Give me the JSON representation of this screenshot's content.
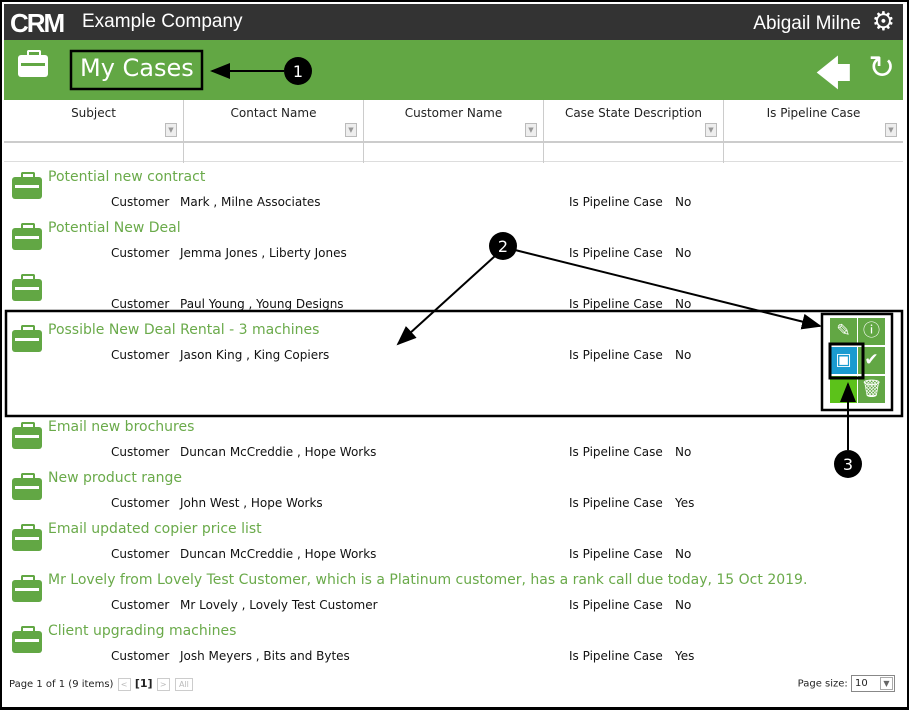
{
  "topbar": {
    "logo": "CRM",
    "company": "Example Company",
    "user": "Abigail Milne",
    "settings_icon": "gear-icon"
  },
  "header": {
    "title": "My Cases",
    "icon": "briefcase-icon",
    "back_icon": "arrow-left-icon",
    "refresh_icon": "refresh-icon"
  },
  "columns": [
    "Subject",
    "Contact Name",
    "Customer Name",
    "Case State Description",
    "Is Pipeline Case"
  ],
  "row_labels": {
    "customer": "Customer",
    "pipeline": "Is Pipeline Case"
  },
  "rows": [
    {
      "subject": "Potential new contract",
      "customer": "Mark , Milne Associates",
      "pipeline": "No"
    },
    {
      "subject": "Potential New Deal",
      "customer": "Jemma Jones , Liberty Jones",
      "pipeline": "No"
    },
    {
      "subject": "",
      "customer": "Paul Young , Young Designs",
      "pipeline": "No"
    },
    {
      "subject": "Possible New Deal Rental - 3 machines",
      "customer": "Jason King , King Copiers",
      "pipeline": "No",
      "selected": true
    },
    {
      "subject": "Email new brochures",
      "customer": "Duncan McCreddie , Hope Works",
      "pipeline": "No"
    },
    {
      "subject": "New product range",
      "customer": "John West , Hope Works",
      "pipeline": "Yes"
    },
    {
      "subject": "Email updated copier price list",
      "customer": "Duncan McCreddie , Hope Works",
      "pipeline": "No"
    },
    {
      "subject": "Mr Lovely from Lovely Test Customer, which is a Platinum customer, has a rank call due today, 15 Oct 2019.",
      "customer": "Mr Lovely , Lovely Test Customer",
      "pipeline": "No"
    },
    {
      "subject": "Client upgrading machines",
      "customer": "Josh Meyers , Bits and Bytes",
      "pipeline": "Yes"
    }
  ],
  "row_actions": [
    {
      "name": "edit",
      "icon": "pencil-icon",
      "color": "#62a744"
    },
    {
      "name": "info",
      "icon": "info-icon",
      "color": "#62a744"
    },
    {
      "name": "calendar",
      "icon": "calendar-icon",
      "color": "#1a9bd0"
    },
    {
      "name": "complete",
      "icon": "check-icon",
      "color": "#62a744"
    },
    {
      "name": "blank",
      "icon": "",
      "color": "#5cc21a"
    },
    {
      "name": "delete",
      "icon": "trash-icon",
      "color": "#62a744"
    }
  ],
  "pager": {
    "summary": "Page 1 of 1 (9 items)",
    "prev": "<",
    "current": "[1]",
    "next": ">",
    "all": "All",
    "page_size_label": "Page size:",
    "page_size": "10"
  },
  "annotations": [
    "1",
    "2",
    "3"
  ],
  "colors": {
    "topbar": "#333333",
    "accent": "#62a744",
    "link": "#6aaa4a",
    "calendar": "#1a9bd0"
  }
}
